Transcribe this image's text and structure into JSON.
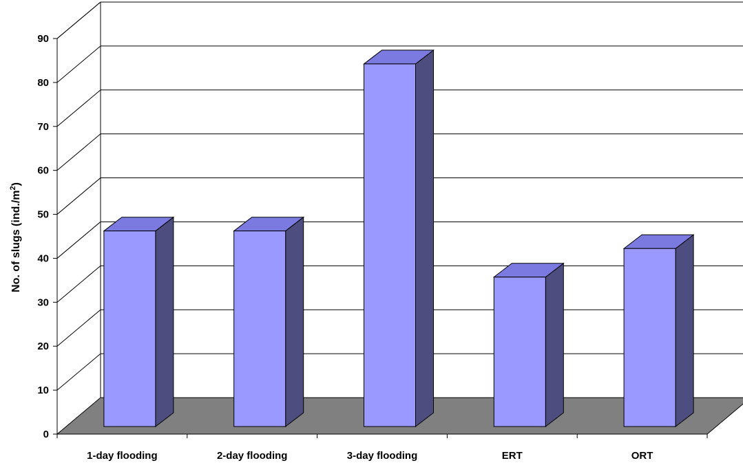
{
  "chart_data": {
    "type": "bar",
    "title": "",
    "xlabel": "",
    "ylabel": "No. of slugs (ind./m",
    "ylabel_superscript": "2",
    "ylabel_suffix": ")",
    "categories": [
      "1-day flooding",
      "2-day flooding",
      "3-day flooding",
      "ERT",
      "ORT"
    ],
    "values": [
      44.5,
      44.5,
      82.5,
      34,
      40.5
    ],
    "ylim": [
      0,
      90
    ],
    "yticks": [
      0,
      10,
      20,
      30,
      40,
      50,
      60,
      70,
      80,
      90
    ],
    "grid": true,
    "legend": "none",
    "style": "3d-column"
  },
  "colors": {
    "bar_front": "#9999ff",
    "bar_top": "#7a7ae0",
    "bar_side": "#4d4d80",
    "floor": "#808080",
    "gridline": "#000000",
    "background": "#ffffff"
  }
}
